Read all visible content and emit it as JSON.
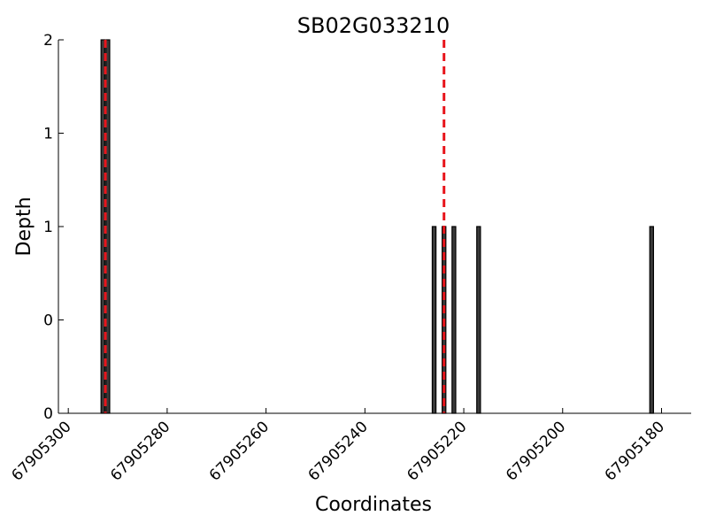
{
  "chart_data": {
    "type": "bar",
    "title": "SB02G033210",
    "xlabel": "Coordinates",
    "ylabel": "Depth",
    "x_inverted": true,
    "xlim": [
      67905302,
      67905174
    ],
    "ylim": [
      0,
      2
    ],
    "x_ticks": [
      67905300,
      67905280,
      67905260,
      67905240,
      67905220,
      67905200,
      67905180
    ],
    "x_tick_labels": [
      "67905300",
      "67905280",
      "67905260",
      "67905240",
      "67905220",
      "67905200",
      "67905180"
    ],
    "y_ticks": [
      0,
      0.5,
      1,
      1.5,
      2
    ],
    "y_tick_labels": [
      "0",
      "0",
      "1",
      "1",
      "2"
    ],
    "grid": false,
    "points": [
      {
        "x": 67905293,
        "y": 2
      },
      {
        "x": 67905292,
        "y": 2
      },
      {
        "x": 67905226,
        "y": 1
      },
      {
        "x": 67905224,
        "y": 1
      },
      {
        "x": 67905222,
        "y": 1
      },
      {
        "x": 67905217,
        "y": 1
      },
      {
        "x": 67905182,
        "y": 1
      }
    ],
    "marker_lines": [
      67905292.5,
      67905224
    ],
    "colors": {
      "bar": "#3a3a3a",
      "marker": "#e8141b"
    }
  }
}
